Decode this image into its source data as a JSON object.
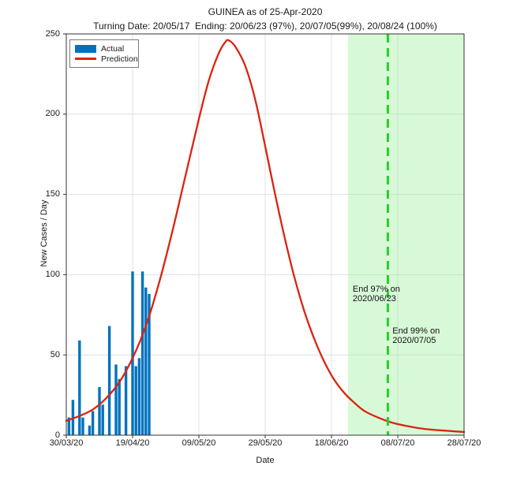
{
  "header": {
    "title": "GUINEA as of 25-Apr-2020",
    "subtitle": "Turning Date: 20/05/17  Ending: 20/06/23 (97%), 20/07/05(99%), 20/08/24 (100%)"
  },
  "key_dates": {
    "as_of": "25-Apr-2020",
    "turning_date": "20/05/17",
    "end_97": "20/06/23",
    "end_99": "20/07/05",
    "end_100": "20/08/24"
  },
  "chart_data": {
    "type": "bar+line",
    "title": "GUINEA as of 25-Apr-2020",
    "xlabel": "Date",
    "ylabel": "New Cases / Day",
    "ylim": [
      0,
      250
    ],
    "xlim_days": [
      0,
      120
    ],
    "grid": true,
    "yticks": [
      {
        "value": 0,
        "label": "0"
      },
      {
        "value": 50,
        "label": "50"
      },
      {
        "value": 100,
        "label": "100"
      },
      {
        "value": 150,
        "label": "150"
      },
      {
        "value": 200,
        "label": "200"
      },
      {
        "value": 250,
        "label": "250"
      }
    ],
    "xticks": [
      {
        "day": 0,
        "label": "30/03/20"
      },
      {
        "day": 20,
        "label": "19/04/20"
      },
      {
        "day": 40,
        "label": "09/05/20"
      },
      {
        "day": 60,
        "label": "29/05/20"
      },
      {
        "day": 80,
        "label": "18/06/20"
      },
      {
        "day": 100,
        "label": "08/07/20"
      },
      {
        "day": 120,
        "label": "28/07/20"
      }
    ],
    "legend": {
      "position": "top-left",
      "items": [
        {
          "label": "Actual",
          "marker": "bar",
          "color": "#0072BD"
        },
        {
          "label": "Prediction",
          "marker": "line",
          "color": "#DD2211"
        }
      ]
    },
    "series": [
      {
        "name": "Actual",
        "type": "bar",
        "color": "#0072BD",
        "points": [
          {
            "date": "31/03/20",
            "day": 0.8,
            "value": 11
          },
          {
            "date": "01/04/20",
            "day": 2,
            "value": 22
          },
          {
            "date": "03/04/20",
            "day": 4,
            "value": 59
          },
          {
            "date": "04/04/20",
            "day": 5,
            "value": 11
          },
          {
            "date": "06/04/20",
            "day": 7,
            "value": 6
          },
          {
            "date": "07/04/20",
            "day": 8,
            "value": 15
          },
          {
            "date": "09/04/20",
            "day": 10,
            "value": 30
          },
          {
            "date": "10/04/20",
            "day": 11,
            "value": 19
          },
          {
            "date": "12/04/20",
            "day": 13,
            "value": 68
          },
          {
            "date": "14/04/20",
            "day": 15,
            "value": 44
          },
          {
            "date": "15/04/20",
            "day": 16,
            "value": 35
          },
          {
            "date": "17/04/20",
            "day": 18,
            "value": 43
          },
          {
            "date": "19/04/20",
            "day": 20,
            "value": 102
          },
          {
            "date": "20/04/20",
            "day": 21,
            "value": 43
          },
          {
            "date": "21/04/20",
            "day": 22,
            "value": 48
          },
          {
            "date": "22/04/20",
            "day": 23,
            "value": 102
          },
          {
            "date": "23/04/20",
            "day": 24,
            "value": 92
          },
          {
            "date": "24/04/20",
            "day": 25,
            "value": 88
          }
        ]
      },
      {
        "name": "Prediction",
        "type": "line",
        "color": "#DD2211",
        "points": [
          [
            0,
            9
          ],
          [
            4,
            12
          ],
          [
            8,
            16
          ],
          [
            12,
            23
          ],
          [
            16,
            33
          ],
          [
            20,
            48
          ],
          [
            24,
            68
          ],
          [
            28,
            95
          ],
          [
            32,
            127
          ],
          [
            36,
            162
          ],
          [
            40,
            197
          ],
          [
            43,
            221
          ],
          [
            46,
            238
          ],
          [
            48,
            245
          ],
          [
            49,
            246
          ],
          [
            51,
            242
          ],
          [
            54,
            230
          ],
          [
            57,
            209
          ],
          [
            60,
            180
          ],
          [
            63,
            150
          ],
          [
            66,
            122
          ],
          [
            69,
            97
          ],
          [
            72,
            76
          ],
          [
            75,
            59
          ],
          [
            78,
            45
          ],
          [
            81,
            34
          ],
          [
            84,
            26
          ],
          [
            87,
            20
          ],
          [
            90,
            15
          ],
          [
            94,
            11
          ],
          [
            98,
            8
          ],
          [
            102,
            6
          ],
          [
            106,
            4.5
          ],
          [
            110,
            3.5
          ],
          [
            115,
            2.7
          ],
          [
            120,
            2
          ]
        ]
      }
    ],
    "shaded_region": {
      "start_day": 85,
      "end_day": 120,
      "color": "#90EE90",
      "opacity": 0.35
    },
    "dashed_line": {
      "day": 97,
      "color": "#25D025"
    },
    "annotations": [
      {
        "line1": "End 97% on",
        "line2": "2020/06/23",
        "day": 86.4,
        "value": 94
      },
      {
        "line1": "End 99% on",
        "line2": "2020/07/05",
        "day": 98.4,
        "value": 68
      }
    ],
    "colors": {
      "grid": "#E1E1E1",
      "axis": "#333333"
    }
  }
}
